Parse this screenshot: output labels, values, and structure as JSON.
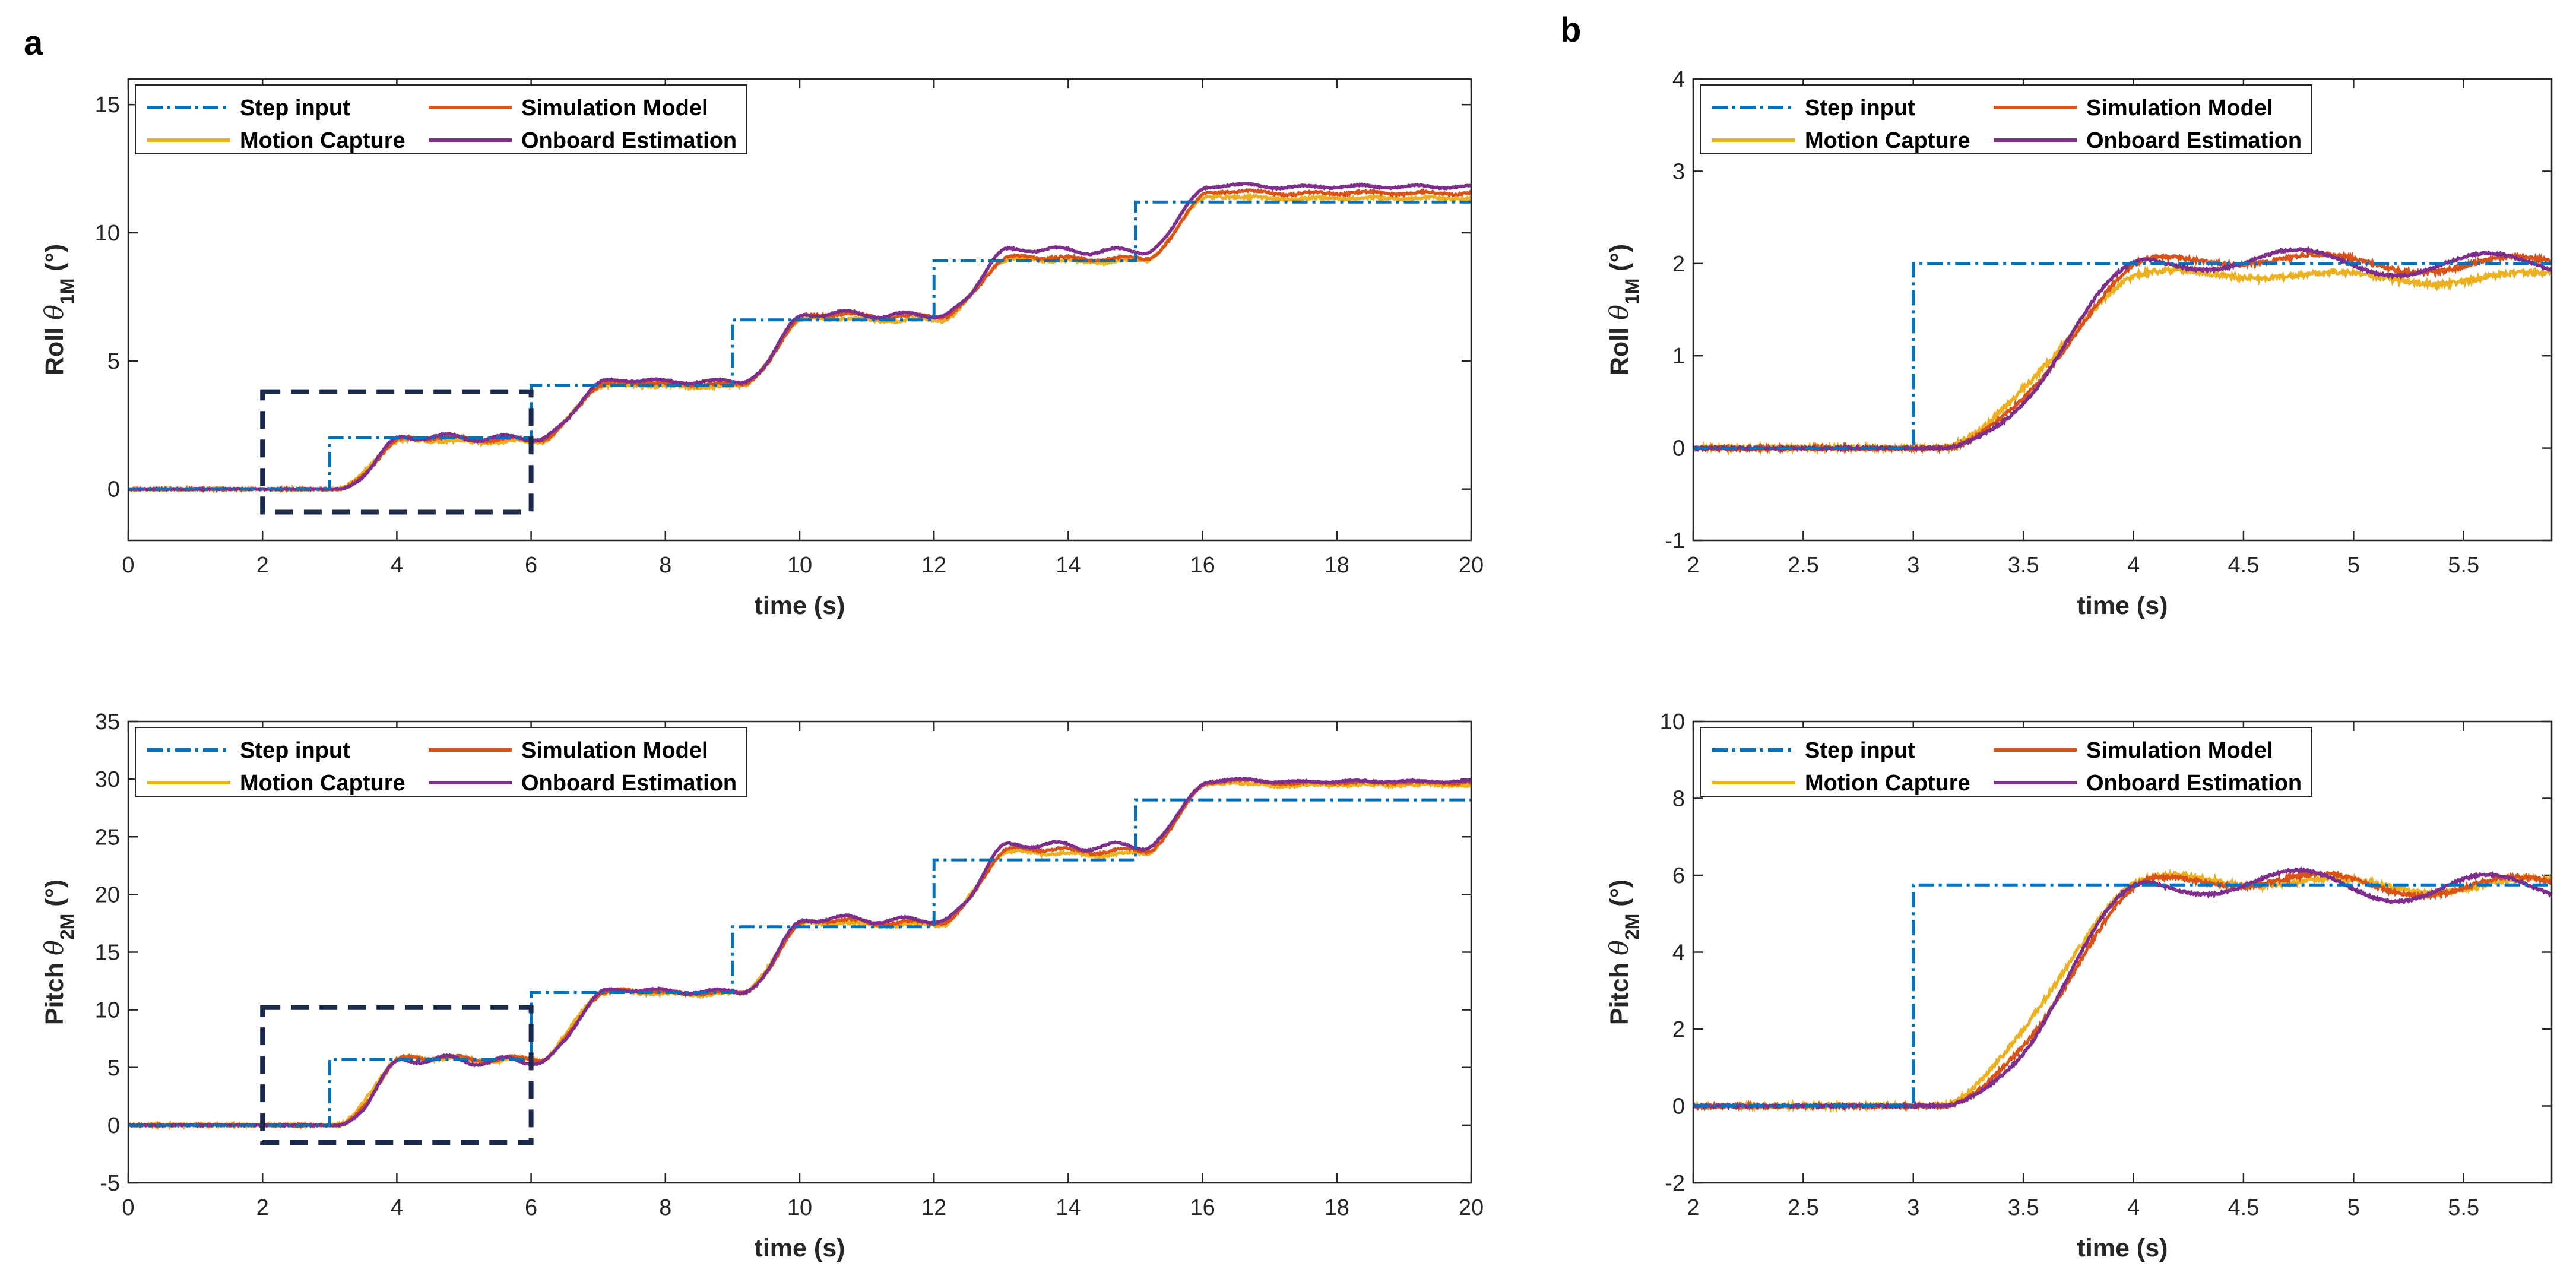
{
  "figure": {
    "panel_labels": [
      "a",
      "b"
    ]
  },
  "colors": {
    "step": "#0072BD",
    "simulation": "#D95319",
    "motion_capture": "#EDB120",
    "onboard": "#7E2F8E",
    "zoom_box": "#1B2A4A"
  },
  "legend_labels": [
    "Step input",
    "Simulation Model",
    "Motion Capture",
    "Onboard Estimation"
  ],
  "chart_data": [
    {
      "id": "roll_full",
      "panel": "a",
      "type": "line",
      "xlabel": "time (s)",
      "ylabel": {
        "prefix": "Roll ",
        "symbol": "θ",
        "sub": "1M",
        "suffix": " (°)"
      },
      "xlim": [
        0,
        20
      ],
      "ylim": [
        -2,
        16
      ],
      "xticks": [
        0,
        2,
        4,
        6,
        8,
        10,
        12,
        14,
        16,
        18,
        20
      ],
      "yticks": [
        0,
        5,
        10,
        15
      ],
      "zoom_box": {
        "x": [
          2,
          6
        ],
        "y": [
          -0.9,
          3.8
        ]
      },
      "step_levels": [
        0,
        2.0,
        4.05,
        6.6,
        8.9,
        11.2
      ],
      "response_levels": {
        "simulation": [
          0,
          1.95,
          4.1,
          6.75,
          9.0,
          11.55
        ],
        "motion_capture": [
          0,
          1.85,
          4.0,
          6.6,
          8.9,
          11.35
        ],
        "onboard": [
          0,
          2.0,
          4.2,
          6.8,
          9.3,
          11.8
        ]
      }
    },
    {
      "id": "roll_zoom",
      "panel": "b",
      "type": "line",
      "xlabel": "time (s)",
      "ylabel": {
        "prefix": "Roll ",
        "symbol": "θ",
        "sub": "1M",
        "suffix": " (°)"
      },
      "xlim": [
        2,
        5.9
      ],
      "ylim": [
        -1,
        4
      ],
      "xticks": [
        2,
        2.5,
        3,
        3.5,
        4,
        4.5,
        5,
        5.5
      ],
      "yticks": [
        -1,
        0,
        1,
        2,
        3,
        4
      ],
      "step_levels": [
        0,
        2.0
      ],
      "response_levels": {
        "simulation": [
          0,
          2.0
        ],
        "motion_capture": [
          0,
          1.85
        ],
        "onboard": [
          0,
          2.0
        ]
      }
    },
    {
      "id": "pitch_full",
      "panel": "a",
      "type": "line",
      "xlabel": "time (s)",
      "ylabel": {
        "prefix": "Pitch ",
        "symbol": "θ",
        "sub": "2M",
        "suffix": " (°)"
      },
      "xlim": [
        0,
        20
      ],
      "ylim": [
        -5,
        35
      ],
      "xticks": [
        0,
        2,
        4,
        6,
        8,
        10,
        12,
        14,
        16,
        18,
        20
      ],
      "yticks": [
        -5,
        0,
        5,
        10,
        15,
        20,
        25,
        30,
        35
      ],
      "zoom_box": {
        "x": [
          2,
          6
        ],
        "y": [
          -1.5,
          10.2
        ]
      },
      "step_levels": [
        0,
        5.7,
        11.5,
        17.2,
        23.0,
        28.2
      ],
      "response_levels": {
        "simulation": [
          0,
          5.75,
          11.5,
          17.6,
          23.8,
          29.7
        ],
        "motion_capture": [
          0,
          5.7,
          11.4,
          17.4,
          23.5,
          29.5
        ],
        "onboard": [
          0,
          5.6,
          11.6,
          17.8,
          24.2,
          29.8
        ]
      }
    },
    {
      "id": "pitch_zoom",
      "panel": "b",
      "type": "line",
      "xlabel": "time (s)",
      "ylabel": {
        "prefix": "Pitch ",
        "symbol": "θ",
        "sub": "2M",
        "suffix": " (°)"
      },
      "xlim": [
        2,
        5.9
      ],
      "ylim": [
        -2,
        10
      ],
      "xticks": [
        2,
        2.5,
        3,
        3.5,
        4,
        4.5,
        5,
        5.5
      ],
      "yticks": [
        -2,
        0,
        2,
        4,
        6,
        8,
        10
      ],
      "step_levels": [
        0,
        5.75
      ],
      "response_levels": {
        "simulation": [
          0,
          5.75
        ],
        "motion_capture": [
          0,
          5.75
        ],
        "onboard": [
          0,
          5.7
        ]
      }
    }
  ]
}
